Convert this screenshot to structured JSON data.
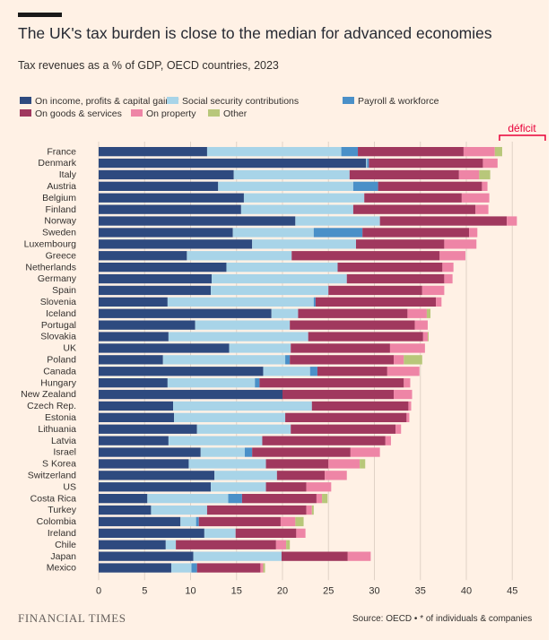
{
  "header": {
    "title": "The UK's tax burden is close to the median for advanced economies",
    "subtitle": "Tax revenues as a % of GDP, OECD countries, 2023"
  },
  "footer": {
    "brand": "FINANCIAL TIMES",
    "source": "Source: OECD • * of individuals & companies"
  },
  "annotation": {
    "label": "déficit",
    "color": "#e8003a"
  },
  "colors": {
    "background": "#fff1e5",
    "grid": "#e0d2c6",
    "text": "#33302e"
  },
  "chart_data": {
    "type": "bar",
    "orientation": "horizontal",
    "stacked": true,
    "title": "The UK's tax burden is close to the median for advanced economies",
    "subtitle": "Tax revenues as a % of GDP, OECD countries, 2023",
    "xlabel": "",
    "ylabel": "",
    "xlim": [
      0,
      45
    ],
    "xticks": [
      0,
      5,
      10,
      15,
      20,
      25,
      30,
      35,
      40,
      45
    ],
    "grid": true,
    "legend_position": "top-left",
    "categories": [
      "France",
      "Denmark",
      "Italy",
      "Austria",
      "Belgium",
      "Finland",
      "Norway",
      "Sweden",
      "Luxembourg",
      "Greece",
      "Netherlands",
      "Germany",
      "Spain",
      "Slovenia",
      "Iceland",
      "Portugal",
      "Slovakia",
      "UK",
      "Poland",
      "Canada",
      "Hungary",
      "New Zealand",
      "Czech Rep.",
      "Estonia",
      "Lithuania",
      "Latvia",
      "Israel",
      "S Korea",
      "Switzerland",
      "US",
      "Costa Rica",
      "Turkey",
      "Colombia",
      "Ireland",
      "Chile",
      "Japan",
      "Mexico"
    ],
    "series": [
      {
        "name": "On income, profits & capital gains*",
        "color": "#2e4a7f",
        "values": [
          11.8,
          29.1,
          14.7,
          13,
          15.8,
          15.5,
          21.4,
          14.6,
          16.7,
          9.6,
          13.9,
          12.3,
          12.2,
          7.5,
          18.8,
          10.5,
          7.6,
          14.2,
          7,
          17.9,
          7.5,
          20,
          8.1,
          8.2,
          10.7,
          7.6,
          11.1,
          9.8,
          12.6,
          12.2,
          5.3,
          5.7,
          8.9,
          11.5,
          7.3,
          10.3,
          7.9
        ]
      },
      {
        "name": "Social security contributions",
        "color": "#a8d4e8",
        "values": [
          14.6,
          0.1,
          12.6,
          14.7,
          13.1,
          12.2,
          9.2,
          8.8,
          11.3,
          11.4,
          12.1,
          14.7,
          12.8,
          15.9,
          2.9,
          10.3,
          15.2,
          6.7,
          13.3,
          5.1,
          9.5,
          0,
          15.1,
          12.1,
          10.2,
          10.2,
          4.8,
          8.4,
          6.8,
          6,
          8.8,
          6.1,
          1.7,
          3.4,
          1.1,
          9.6,
          2.2
        ]
      },
      {
        "name": "Payroll & workforce",
        "color": "#4a90c8",
        "values": [
          1.8,
          0.2,
          0,
          2.7,
          0,
          0,
          0,
          5.3,
          0,
          0,
          0,
          0,
          0,
          0.2,
          0,
          0,
          0,
          0,
          0.5,
          0.8,
          0.5,
          0,
          0,
          0,
          0,
          0,
          0.8,
          0,
          0,
          0,
          1.5,
          0,
          0.3,
          0,
          0,
          0,
          0.6
        ]
      },
      {
        "name": "On goods & services",
        "color": "#a0385e",
        "values": [
          11.5,
          12.4,
          11.9,
          11.3,
          10.6,
          13.3,
          13.8,
          11.6,
          9.6,
          16.1,
          11.4,
          10.6,
          10.2,
          13.1,
          11.9,
          13.6,
          12.5,
          10.8,
          11.3,
          7.6,
          15.7,
          12.1,
          10.5,
          13.2,
          11.4,
          13.4,
          10.7,
          6.8,
          5.2,
          4.4,
          8.1,
          10.8,
          8.9,
          6.6,
          10.9,
          7.2,
          6.9
        ]
      },
      {
        "name": "On property",
        "color": "#ee85a6",
        "values": [
          3.4,
          1.6,
          2.2,
          0.6,
          3,
          1.4,
          1.1,
          0.9,
          3.5,
          2.8,
          1.2,
          0.9,
          2.4,
          0.6,
          2.1,
          1.4,
          0.5,
          3.8,
          1.1,
          3.5,
          0.7,
          2,
          0.3,
          0.3,
          0.6,
          0.6,
          3.2,
          3.4,
          2.4,
          2.7,
          0.6,
          0.6,
          1.6,
          1,
          1.1,
          2.5,
          0.3
        ]
      },
      {
        "name": "Other",
        "color": "#b8c77a",
        "values": [
          0.8,
          0,
          1.2,
          0,
          0,
          0,
          0,
          0,
          0,
          0,
          0,
          0,
          0,
          0,
          0.4,
          0,
          0.1,
          0,
          2,
          0,
          0,
          0,
          0,
          0,
          0,
          0,
          0,
          0.6,
          0,
          0,
          0.6,
          0.2,
          0.9,
          0,
          0.4,
          0,
          0.2
        ]
      }
    ]
  }
}
